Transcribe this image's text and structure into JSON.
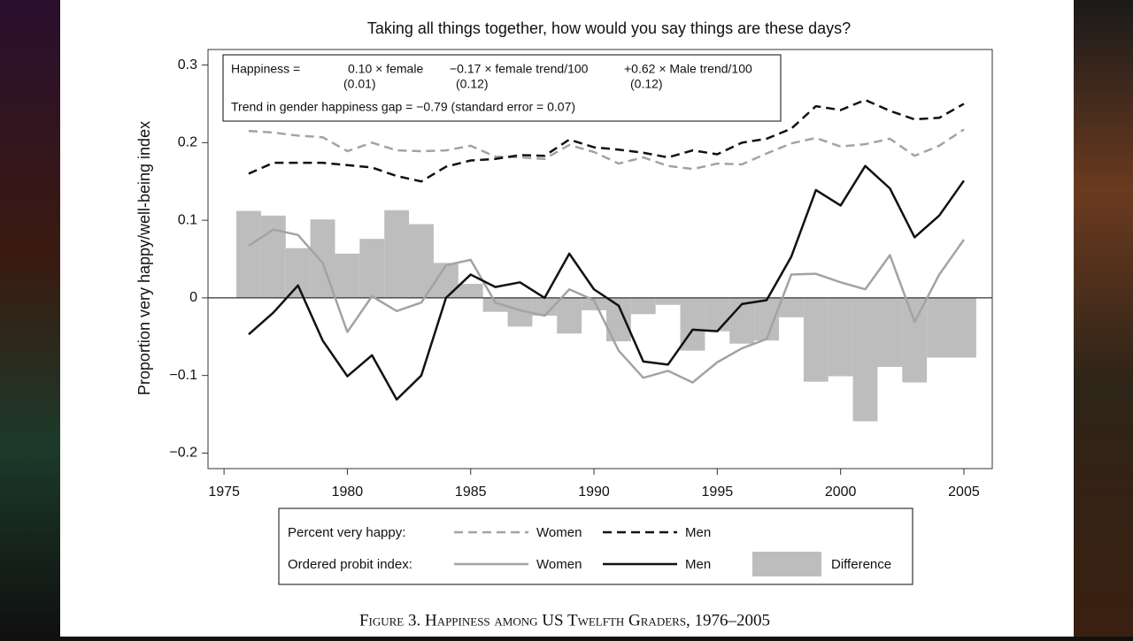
{
  "chart_data": {
    "type": "line",
    "title": "Taking all things together, how would you say things are these days?",
    "y_label": "Proportion very happy/well-being index",
    "caption": "Figure 3. Happiness among US Twelfth Graders, 1976–2005",
    "equation": {
      "lhs": "Happiness =",
      "terms": [
        {
          "text": "0.10 × female",
          "se": "(0.01)"
        },
        {
          "text": "−0.17 × female trend/100",
          "se": "(0.12)"
        },
        {
          "text": "+0.62 × Male trend/100",
          "se": "(0.12)"
        }
      ]
    },
    "gap_note": "Trend in gender happiness gap = −0.79 (standard error = 0.07)",
    "legend_groups": [
      "Percent very happy:",
      "Ordered probit index:"
    ],
    "x": [
      1976,
      1977,
      1978,
      1979,
      1980,
      1981,
      1982,
      1983,
      1984,
      1985,
      1986,
      1987,
      1988,
      1989,
      1990,
      1991,
      1992,
      1993,
      1994,
      1995,
      1996,
      1997,
      1998,
      1999,
      2000,
      2001,
      2002,
      2003,
      2004,
      2005
    ],
    "series": [
      {
        "name": "Women",
        "style": "dashed",
        "color": "#a3a3a3",
        "values": [
          0.215,
          0.213,
          0.209,
          0.207,
          0.189,
          0.2,
          0.19,
          0.189,
          0.19,
          0.196,
          0.182,
          0.181,
          0.179,
          0.197,
          0.188,
          0.173,
          0.181,
          0.17,
          0.166,
          0.173,
          0.172,
          0.186,
          0.199,
          0.206,
          0.195,
          0.198,
          0.205,
          0.183,
          0.196,
          0.217
        ]
      },
      {
        "name": "Men",
        "style": "dashed",
        "color": "#111111",
        "values": [
          0.16,
          0.174,
          0.174,
          0.174,
          0.171,
          0.168,
          0.157,
          0.15,
          0.169,
          0.177,
          0.179,
          0.184,
          0.183,
          0.204,
          0.194,
          0.191,
          0.187,
          0.181,
          0.19,
          0.185,
          0.2,
          0.205,
          0.218,
          0.247,
          0.242,
          0.255,
          0.241,
          0.23,
          0.232,
          0.25
        ]
      },
      {
        "name": "Women",
        "style": "solid",
        "color": "#a3a3a3",
        "values": [
          0.067,
          0.088,
          0.081,
          0.045,
          -0.044,
          0.002,
          -0.017,
          -0.006,
          0.042,
          0.049,
          -0.006,
          -0.016,
          -0.023,
          0.011,
          -0.003,
          -0.068,
          -0.103,
          -0.094,
          -0.109,
          -0.083,
          -0.065,
          -0.053,
          0.03,
          0.031,
          0.02,
          0.011,
          0.055,
          -0.031,
          0.03,
          0.075
        ]
      },
      {
        "name": "Men",
        "style": "solid",
        "color": "#111111",
        "values": [
          -0.047,
          -0.019,
          0.016,
          -0.055,
          -0.101,
          -0.074,
          -0.131,
          -0.1,
          0.0,
          0.03,
          0.014,
          0.02,
          0.0,
          0.057,
          0.011,
          -0.01,
          -0.082,
          -0.086,
          -0.041,
          -0.043,
          -0.008,
          -0.003,
          0.053,
          0.139,
          0.119,
          0.17,
          0.141,
          0.078,
          0.106,
          0.151
        ]
      },
      {
        "name": "Difference",
        "style": "bar",
        "color": "#bdbdbd",
        "values": [
          0.112,
          0.106,
          0.064,
          0.101,
          0.057,
          0.076,
          0.113,
          0.095,
          0.045,
          0.018,
          -0.018,
          -0.037,
          -0.023,
          -0.046,
          -0.016,
          -0.056,
          -0.021,
          -0.009,
          -0.068,
          -0.043,
          -0.059,
          -0.055,
          -0.025,
          -0.108,
          -0.101,
          -0.159,
          -0.089,
          -0.109,
          -0.077,
          -0.077
        ]
      }
    ],
    "xlim": [
      1974.35,
      2006.15
    ],
    "xticks": [
      1975,
      1980,
      1985,
      1990,
      1995,
      2000,
      2005
    ],
    "ylim": [
      -0.22,
      0.32
    ],
    "yticks": [
      {
        "value": -0.2,
        "label": "−0.2"
      },
      {
        "value": -0.1,
        "label": "−0.1"
      },
      0,
      0.1,
      0.2,
      0.3
    ]
  }
}
